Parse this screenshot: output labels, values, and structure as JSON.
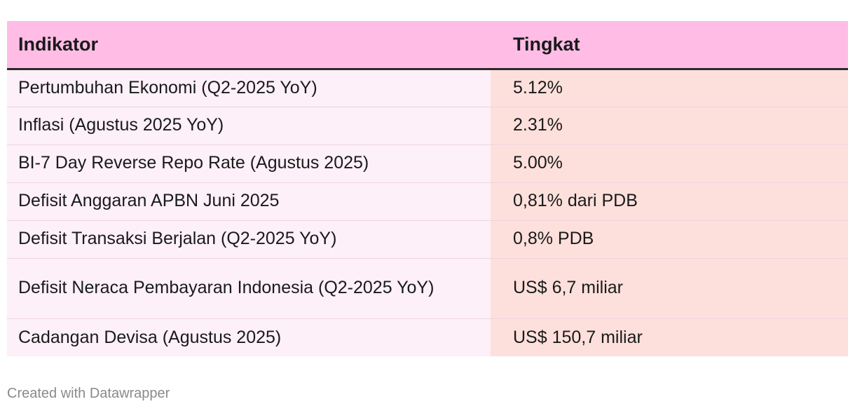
{
  "chart_data": {
    "type": "table",
    "columns": [
      "Indikator",
      "Tingkat"
    ],
    "rows": [
      {
        "indikator": "Pertumbuhan Ekonomi (Q2-2025 YoY)",
        "tingkat": "5.12%"
      },
      {
        "indikator": "Inflasi (Agustus 2025 YoY)",
        "tingkat": "2.31%"
      },
      {
        "indikator": "BI-7 Day Reverse Repo Rate (Agustus 2025)",
        "tingkat": "5.00%"
      },
      {
        "indikator": "Defisit Anggaran APBN Juni 2025",
        "tingkat": "0,81% dari PDB"
      },
      {
        "indikator": "Defisit Transaksi Berjalan (Q2-2025 YoY)",
        "tingkat": "0,8% PDB"
      },
      {
        "indikator": "Defisit Neraca Pembayaran Indonesia (Q2-2025 YoY)",
        "tingkat": "US$ 6,7 miliar"
      },
      {
        "indikator": "Cadangan Devisa (Agustus 2025)",
        "tingkat": "US$ 150,7 miliar"
      }
    ]
  },
  "colors": {
    "header_bg": "#ffbde6",
    "indicator_cell_bg": "#fdf0f8",
    "value_cell_bg": "#fde0dc"
  },
  "footer": {
    "credit": "Created with Datawrapper"
  }
}
